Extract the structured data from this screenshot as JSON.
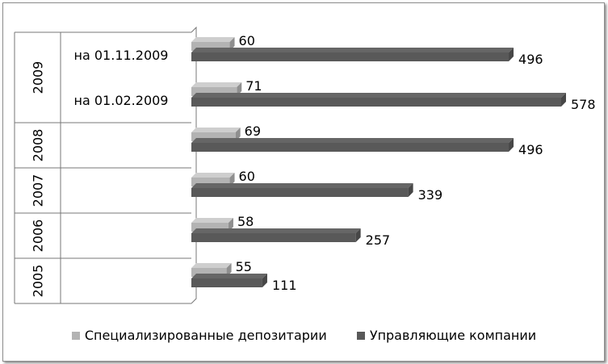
{
  "chart_data": {
    "type": "bar",
    "orientation": "horizontal",
    "style": "3d",
    "groups": [
      {
        "year": "2005",
        "rows": [
          {
            "label": "",
            "values": [
              55,
              111
            ]
          }
        ]
      },
      {
        "year": "2006",
        "rows": [
          {
            "label": "",
            "values": [
              58,
              257
            ]
          }
        ]
      },
      {
        "year": "2007",
        "rows": [
          {
            "label": "",
            "values": [
              60,
              339
            ]
          }
        ]
      },
      {
        "year": "2008",
        "rows": [
          {
            "label": "",
            "values": [
              69,
              496
            ]
          }
        ]
      },
      {
        "year": "2009",
        "rows": [
          {
            "label": "на 01.02.2009",
            "values": [
              71,
              578
            ]
          },
          {
            "label": "на 01.11.2009",
            "values": [
              60,
              496
            ]
          }
        ]
      }
    ],
    "series": [
      {
        "name": "Специализированные депозитарии",
        "color": "#b3b3b3"
      },
      {
        "name": "Управляющие компании",
        "color": "#595959"
      }
    ],
    "xlim": [
      0,
      600
    ],
    "grid": false,
    "legend_position": "bottom"
  }
}
